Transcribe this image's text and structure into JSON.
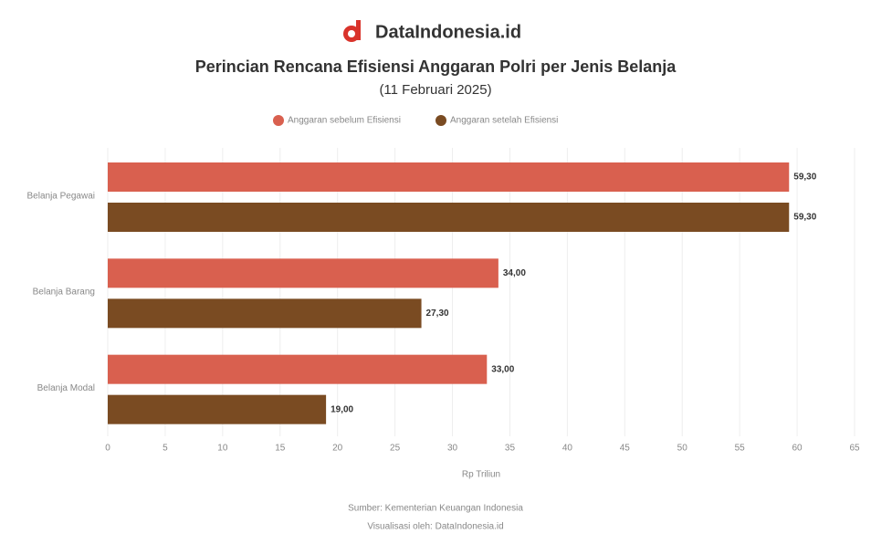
{
  "header": {
    "brand": "DataIndonesia.id"
  },
  "chart_data": {
    "type": "bar",
    "orientation": "horizontal",
    "title": "Perincian Rencana Efisiensi Anggaran Polri per Jenis Belanja",
    "subtitle": "(11 Februari 2025)",
    "categories": [
      "Belanja Pegawai",
      "Belanja Barang",
      "Belanja Modal"
    ],
    "series": [
      {
        "name": "Anggaran sebelum Efisiensi",
        "color": "#d9604f",
        "values": [
          59.3,
          34.0,
          33.0
        ],
        "value_labels": [
          "59,30",
          "34,00",
          "33,00"
        ]
      },
      {
        "name": "Anggaran setelah Efisiensi",
        "color": "#7a4b22",
        "values": [
          59.3,
          27.3,
          19.0
        ],
        "value_labels": [
          "59,30",
          "27,30",
          "19,00"
        ]
      }
    ],
    "xlim": [
      0,
      65
    ],
    "xticks": [
      0,
      5,
      10,
      15,
      20,
      25,
      30,
      35,
      40,
      45,
      50,
      55,
      60,
      65
    ],
    "xlabel": "Rp Triliun",
    "grid": true,
    "source": [
      "Sumber: Kementerian Keuangan Indonesia",
      "Visualisasi oleh: DataIndonesia.id"
    ]
  }
}
